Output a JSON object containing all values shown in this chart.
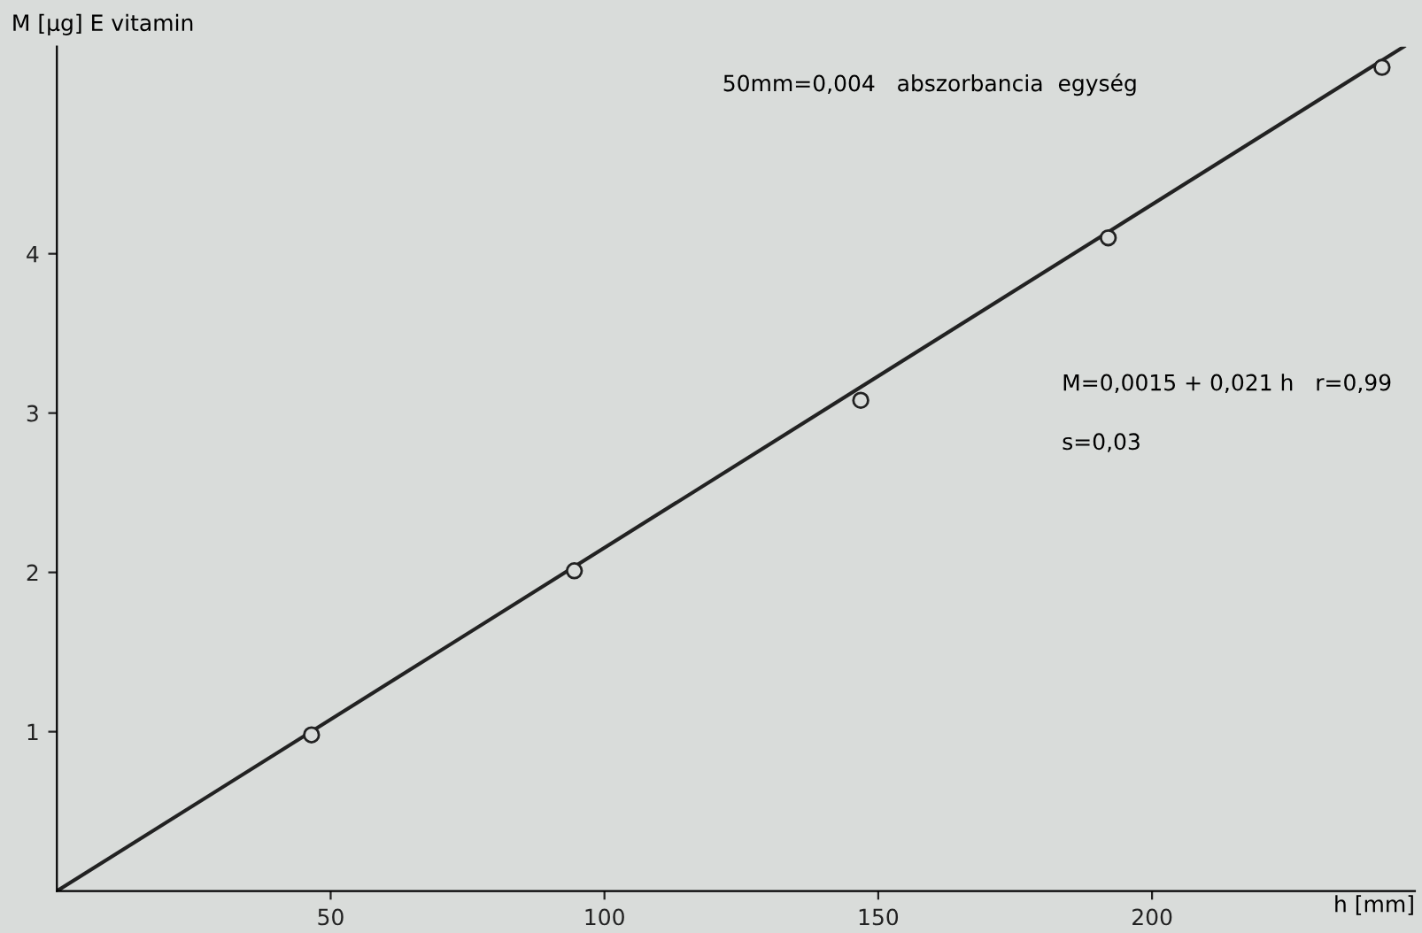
{
  "chart_data": {
    "type": "scatter",
    "xlabel": "h [mm]",
    "ylabel": "M [μg] E vitamin",
    "x": [
      46.5,
      94.5,
      146.8,
      192,
      242
    ],
    "series": [
      {
        "color": "#222222",
        "marker": "circle",
        "values": [
          0.98,
          2.01,
          3.08,
          4.1,
          5.17
        ]
      },
      {
        "type": "line",
        "marker": "none",
        "color": "#222222",
        "x": [
          0,
          246
        ],
        "values": [
          0,
          5.3
        ]
      }
    ],
    "xlim": [
      0,
      248
    ],
    "ylim": [
      0,
      5.3
    ],
    "xticks": [
      50,
      100,
      150,
      200
    ],
    "yticks": [
      1,
      2,
      3,
      4
    ],
    "grid": false,
    "legend": false,
    "annotations": [
      "50mm=0,004   abszorbancia  egység",
      "M=0,0015 + 0,021 h   r=0,99",
      "s=0,03"
    ]
  }
}
